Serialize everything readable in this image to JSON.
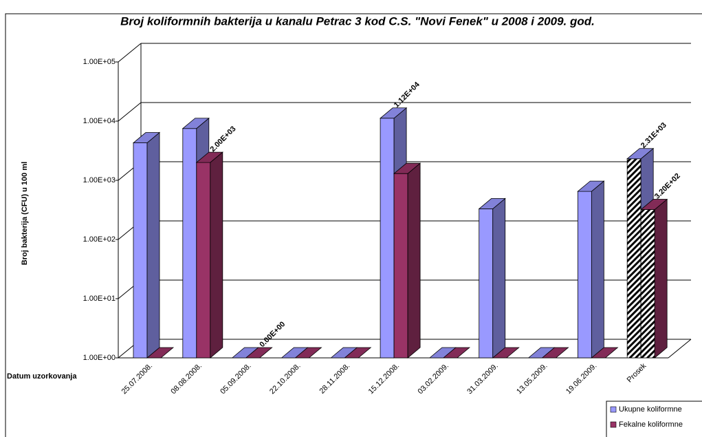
{
  "chart_data": {
    "type": "bar",
    "title": "Broj koliformnih bakterija u kanalu Petrac 3 kod C.S. \"Novi Fenek\" u 2008 i 2009. god.",
    "y_label": "Broj bakterija (CFU) u 100 ml",
    "x_label": "Datum uzorkovanja",
    "categories": [
      "25.07.2008.",
      "08.08.2008.",
      "05.09.2008.",
      "22.10.2008.",
      "28.11.2008.",
      "15.12.2008.",
      "03.02.2009.",
      "31.03.2009.",
      "13.05.2009.",
      "19.06.2009.",
      "Prosek"
    ],
    "series": [
      {
        "name": "Ukupne koliformne",
        "color": "#9999ff",
        "values": [
          4300,
          7500,
          0,
          0,
          0,
          11200,
          0,
          330,
          0,
          650,
          2310
        ],
        "value_labels": [
          null,
          null,
          null,
          null,
          null,
          "1.12E+04",
          null,
          null,
          null,
          null,
          "2.31E+03"
        ]
      },
      {
        "name": "Fekalne koliformne",
        "color": "#993366",
        "values": [
          0,
          2000,
          0,
          0,
          0,
          1300,
          0,
          0,
          0,
          0,
          320
        ],
        "value_labels": [
          null,
          "2.00E+03",
          "0.00E+00",
          null,
          null,
          null,
          null,
          null,
          null,
          null,
          "3.20E+02"
        ]
      }
    ],
    "log_scale": true,
    "ylim": [
      1,
      100000
    ],
    "yticks": [
      {
        "value": 1,
        "label": "1.00E+00"
      },
      {
        "value": 10,
        "label": "1.00E+01"
      },
      {
        "value": 100,
        "label": "1.00E+02"
      },
      {
        "value": 1000,
        "label": "1.00E+03"
      },
      {
        "value": 10000,
        "label": "1.00E+04"
      },
      {
        "value": 100000,
        "label": "1.00E+05"
      }
    ],
    "grid": true,
    "legend": "bottom-right"
  }
}
